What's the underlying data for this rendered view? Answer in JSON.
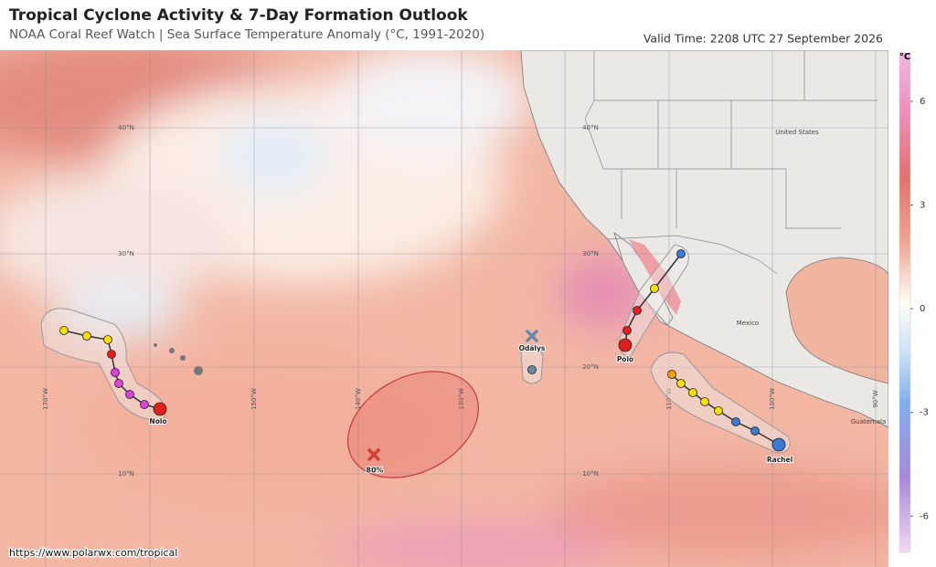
{
  "header": {
    "title": "Tropical Cyclone Activity & 7-Day Formation Outlook",
    "subtitle": "NOAA Coral Reef Watch | Sea Surface Temperature Anomaly (°C, 1991-2020)",
    "valid_time": "Valid Time: 2208 UTC 27 September 2026"
  },
  "colorbar": {
    "label": "°C",
    "lim": [
      -7.05,
      7.4
    ],
    "ticks": [
      6,
      3,
      0,
      -3,
      -6
    ]
  },
  "map": {
    "lat_labels": [
      "40°N",
      "30°N",
      "20°N",
      "10°N"
    ],
    "lon_labels": [
      "170°W",
      "150°W",
      "140°W",
      "130°W",
      "110°W",
      "100°W",
      "90°W"
    ],
    "place_labels": [
      "United States",
      "Mexico",
      "Guatemala"
    ]
  },
  "storms": [
    {
      "name": "Nolo"
    },
    {
      "name": "Odalys"
    },
    {
      "name": "Polo"
    },
    {
      "name": "Rachel"
    }
  ],
  "outlook": {
    "probability": "80%"
  },
  "footer": {
    "url": "https://www.polarwx.com/tropical"
  }
}
